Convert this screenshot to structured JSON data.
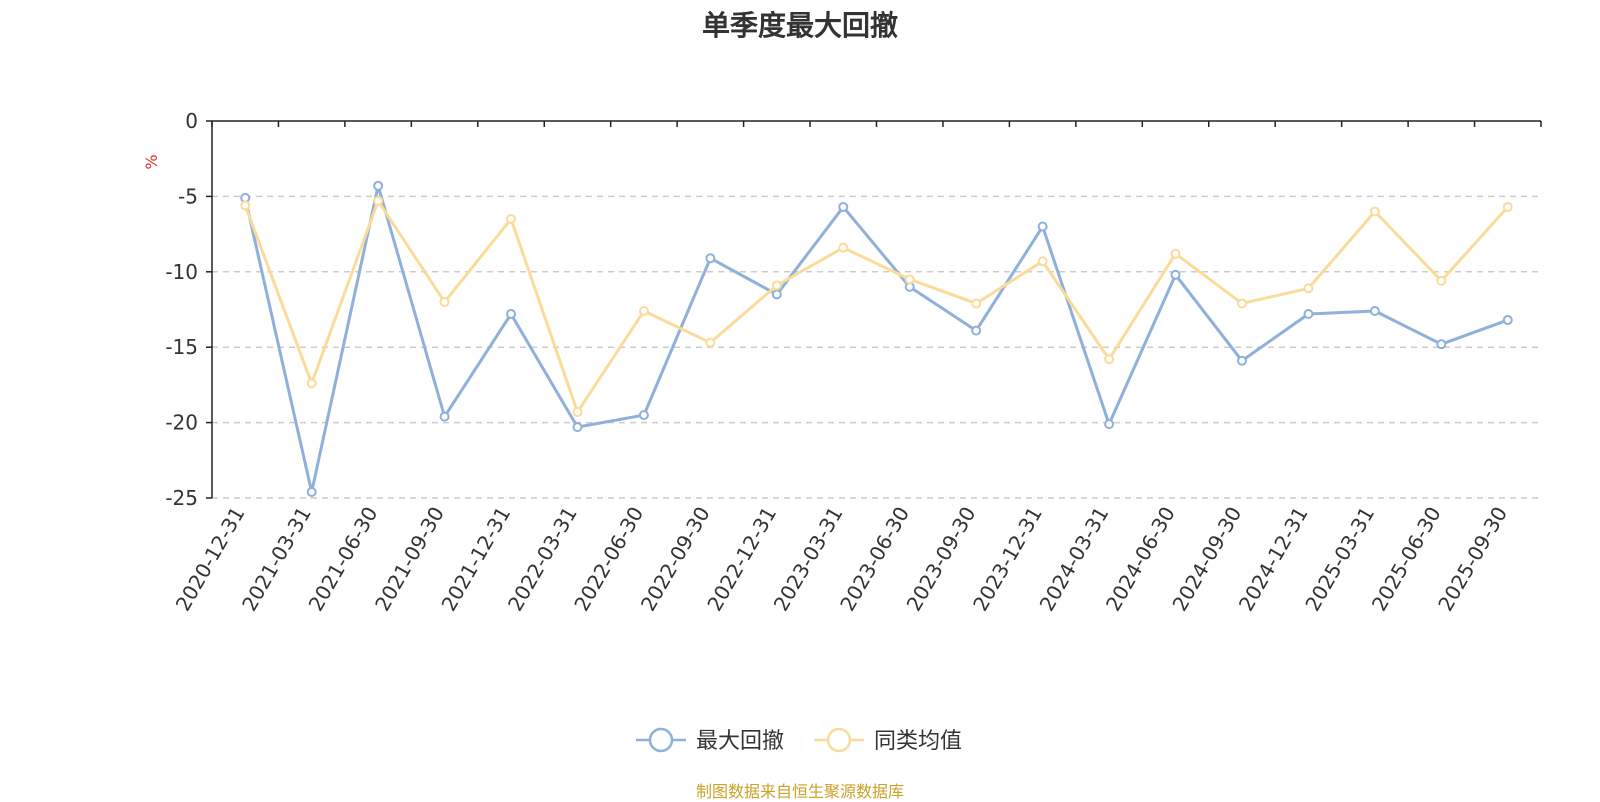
{
  "chart_data": {
    "type": "line",
    "title": "单季度最大回撤",
    "ylabel": "%",
    "ylim": [
      -25,
      0
    ],
    "yticks": [
      0,
      -5,
      -10,
      -15,
      -20,
      -25
    ],
    "grid": true,
    "legend_position": "bottom",
    "categories": [
      "2020-12-31",
      "2021-03-31",
      "2021-06-30",
      "2021-09-30",
      "2021-12-31",
      "2022-03-31",
      "2022-06-30",
      "2022-09-30",
      "2022-12-31",
      "2023-03-31",
      "2023-06-30",
      "2023-09-30",
      "2023-12-31",
      "2024-03-31",
      "2024-06-30",
      "2024-09-30",
      "2024-12-31",
      "2025-03-31",
      "2025-06-30",
      "2025-09-30"
    ],
    "series": [
      {
        "name": "最大回撤",
        "color": "#8eb0db",
        "values": [
          -5.1,
          -24.6,
          -4.3,
          -19.6,
          -12.8,
          -20.3,
          -19.5,
          -9.1,
          -11.5,
          -5.7,
          -11.0,
          -13.9,
          -7.0,
          -20.1,
          -10.2,
          -15.9,
          -12.8,
          -12.6,
          -14.8,
          -13.2
        ]
      },
      {
        "name": "同类均值",
        "color": "#fbdb9a",
        "values": [
          -5.6,
          -17.4,
          -5.3,
          -12.0,
          -6.5,
          -19.3,
          -12.6,
          -14.7,
          -10.9,
          -8.4,
          -10.5,
          -12.1,
          -9.3,
          -15.8,
          -8.8,
          -12.1,
          -11.1,
          -6.0,
          -10.6,
          -5.7
        ]
      }
    ]
  },
  "source_note": {
    "text": "制图数据来自恒生聚源数据库",
    "color": "#c9a227"
  },
  "ylabel_color": "#e03030"
}
